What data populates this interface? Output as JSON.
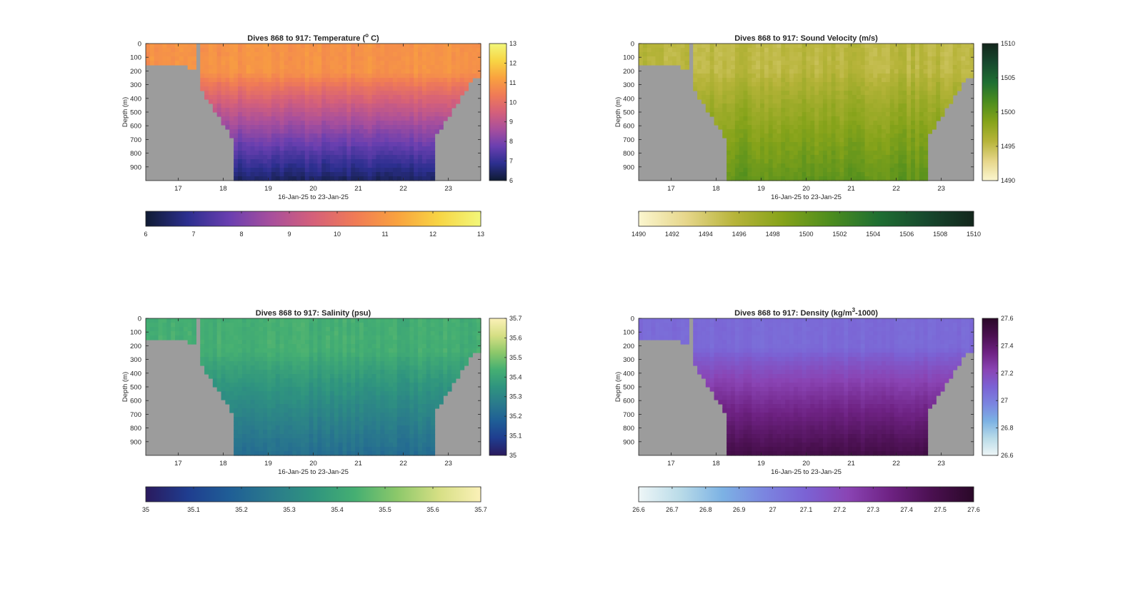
{
  "chart_data": [
    {
      "type": "heatmap",
      "title": "Dives 868 to 917: Temperature (°C)",
      "title_main": "Dives 868 to 917: Temperature (",
      "title_sup": "o",
      "title_end": " C)",
      "xlabel": "16-Jan-25 to 23-Jan-25",
      "ylabel": "Depth (m)",
      "x_ticks": [
        "17",
        "18",
        "19",
        "20",
        "21",
        "22",
        "23"
      ],
      "y_ticks": [
        "0",
        "100",
        "200",
        "300",
        "400",
        "500",
        "600",
        "700",
        "800",
        "900"
      ],
      "xlim": [
        16.28,
        23.72
      ],
      "ylim": [
        0,
        1000
      ],
      "clim": [
        6,
        13
      ],
      "colorbar_ticks": [
        "6",
        "7",
        "8",
        "9",
        "10",
        "11",
        "12",
        "13"
      ],
      "colormap": [
        "#0f1b33",
        "#2c2f8f",
        "#6a3fb0",
        "#a84f9c",
        "#d5607a",
        "#f07b56",
        "#f9a23f",
        "#f7d544",
        "#f2f77a"
      ],
      "horiz_colorbar_ticks": [
        "6",
        "7",
        "8",
        "9",
        "10",
        "11",
        "12",
        "13"
      ],
      "field": {
        "surface": 10.9,
        "deep": 6.4,
        "mix_depth": 220,
        "noise": 0.35
      }
    },
    {
      "type": "heatmap",
      "title": "Dives 868 to 917: Sound Velocity (m/s)",
      "title_main": "Dives 868 to 917: Sound Velocity (m/s)",
      "title_sup": "",
      "title_end": "",
      "xlabel": "16-Jan-25 to 23-Jan-25",
      "ylabel": "Depth (m)",
      "x_ticks": [
        "17",
        "18",
        "19",
        "20",
        "21",
        "22",
        "23"
      ],
      "y_ticks": [
        "0",
        "100",
        "200",
        "300",
        "400",
        "500",
        "600",
        "700",
        "800",
        "900"
      ],
      "xlim": [
        16.28,
        23.72
      ],
      "ylim": [
        0,
        1000
      ],
      "clim": [
        1490,
        1510
      ],
      "colorbar_ticks": [
        "1490",
        "1495",
        "1500",
        "1505",
        "1510"
      ],
      "colormap": [
        "#fbf6cf",
        "#e6d68a",
        "#b7b43a",
        "#86a31a",
        "#4d8d1e",
        "#1f6f32",
        "#17492e",
        "#13261c"
      ],
      "horiz_colorbar_ticks": [
        "1490",
        "1492",
        "1494",
        "1496",
        "1498",
        "1500",
        "1502",
        "1504",
        "1506",
        "1508",
        "1510"
      ],
      "field": {
        "surface": 1495.5,
        "deep": 1500.5,
        "mix_depth": 200,
        "noise": 1.3
      }
    },
    {
      "type": "heatmap",
      "title": "Dives 868 to 917: Salinity (psu)",
      "title_main": "Dives 868 to 917: Salinity (psu)",
      "title_sup": "",
      "title_end": "",
      "xlabel": "16-Jan-25 to 23-Jan-25",
      "ylabel": "Depth (m)",
      "x_ticks": [
        "17",
        "18",
        "19",
        "20",
        "21",
        "22",
        "23"
      ],
      "y_ticks": [
        "0",
        "100",
        "200",
        "300",
        "400",
        "500",
        "600",
        "700",
        "800",
        "900"
      ],
      "xlim": [
        16.28,
        23.72
      ],
      "ylim": [
        0,
        1000
      ],
      "clim": [
        35,
        35.7
      ],
      "colorbar_ticks": [
        "35",
        "35.1",
        "35.2",
        "35.3",
        "35.4",
        "35.5",
        "35.6",
        "35.7"
      ],
      "colormap": [
        "#2a1a5e",
        "#1f3d8f",
        "#1f5e96",
        "#2a7a8c",
        "#2f947f",
        "#45af72",
        "#8cc86a",
        "#d6df84",
        "#fbf1b8"
      ],
      "horiz_colorbar_ticks": [
        "35",
        "35.1",
        "35.2",
        "35.3",
        "35.4",
        "35.5",
        "35.6",
        "35.7"
      ],
      "field": {
        "surface": 35.43,
        "deep": 35.22,
        "mix_depth": 250,
        "noise": 0.035
      }
    },
    {
      "type": "heatmap",
      "title": "Dives 868 to 917: Density (kg/m³-1000)",
      "title_main": "Dives 868 to 917: Density (kg/m",
      "title_sup": "3",
      "title_end": "-1000)",
      "xlabel": "16-Jan-25 to 23-Jan-25",
      "ylabel": "Depth (m)",
      "x_ticks": [
        "17",
        "18",
        "19",
        "20",
        "21",
        "22",
        "23"
      ],
      "y_ticks": [
        "0",
        "100",
        "200",
        "300",
        "400",
        "500",
        "600",
        "700",
        "800",
        "900"
      ],
      "xlim": [
        16.28,
        23.72
      ],
      "ylim": [
        0,
        1000
      ],
      "clim": [
        26.6,
        27.6
      ],
      "colorbar_ticks": [
        "26.6",
        "26.8",
        "27",
        "27.2",
        "27.4",
        "27.6"
      ],
      "colormap": [
        "#eef6f7",
        "#b9dbe8",
        "#7cb2e4",
        "#7b85e0",
        "#7b62d4",
        "#8a44b4",
        "#6e2283",
        "#4a1050",
        "#2a0828"
      ],
      "horiz_colorbar_ticks": [
        "26.6",
        "26.7",
        "26.8",
        "26.9",
        "27",
        "27.1",
        "27.2",
        "27.3",
        "27.4",
        "27.5",
        "27.6"
      ],
      "field": {
        "surface": 27.07,
        "deep": 27.5,
        "mix_depth": 220,
        "noise": 0.03
      }
    }
  ],
  "missing_color": "#9c9c9c"
}
